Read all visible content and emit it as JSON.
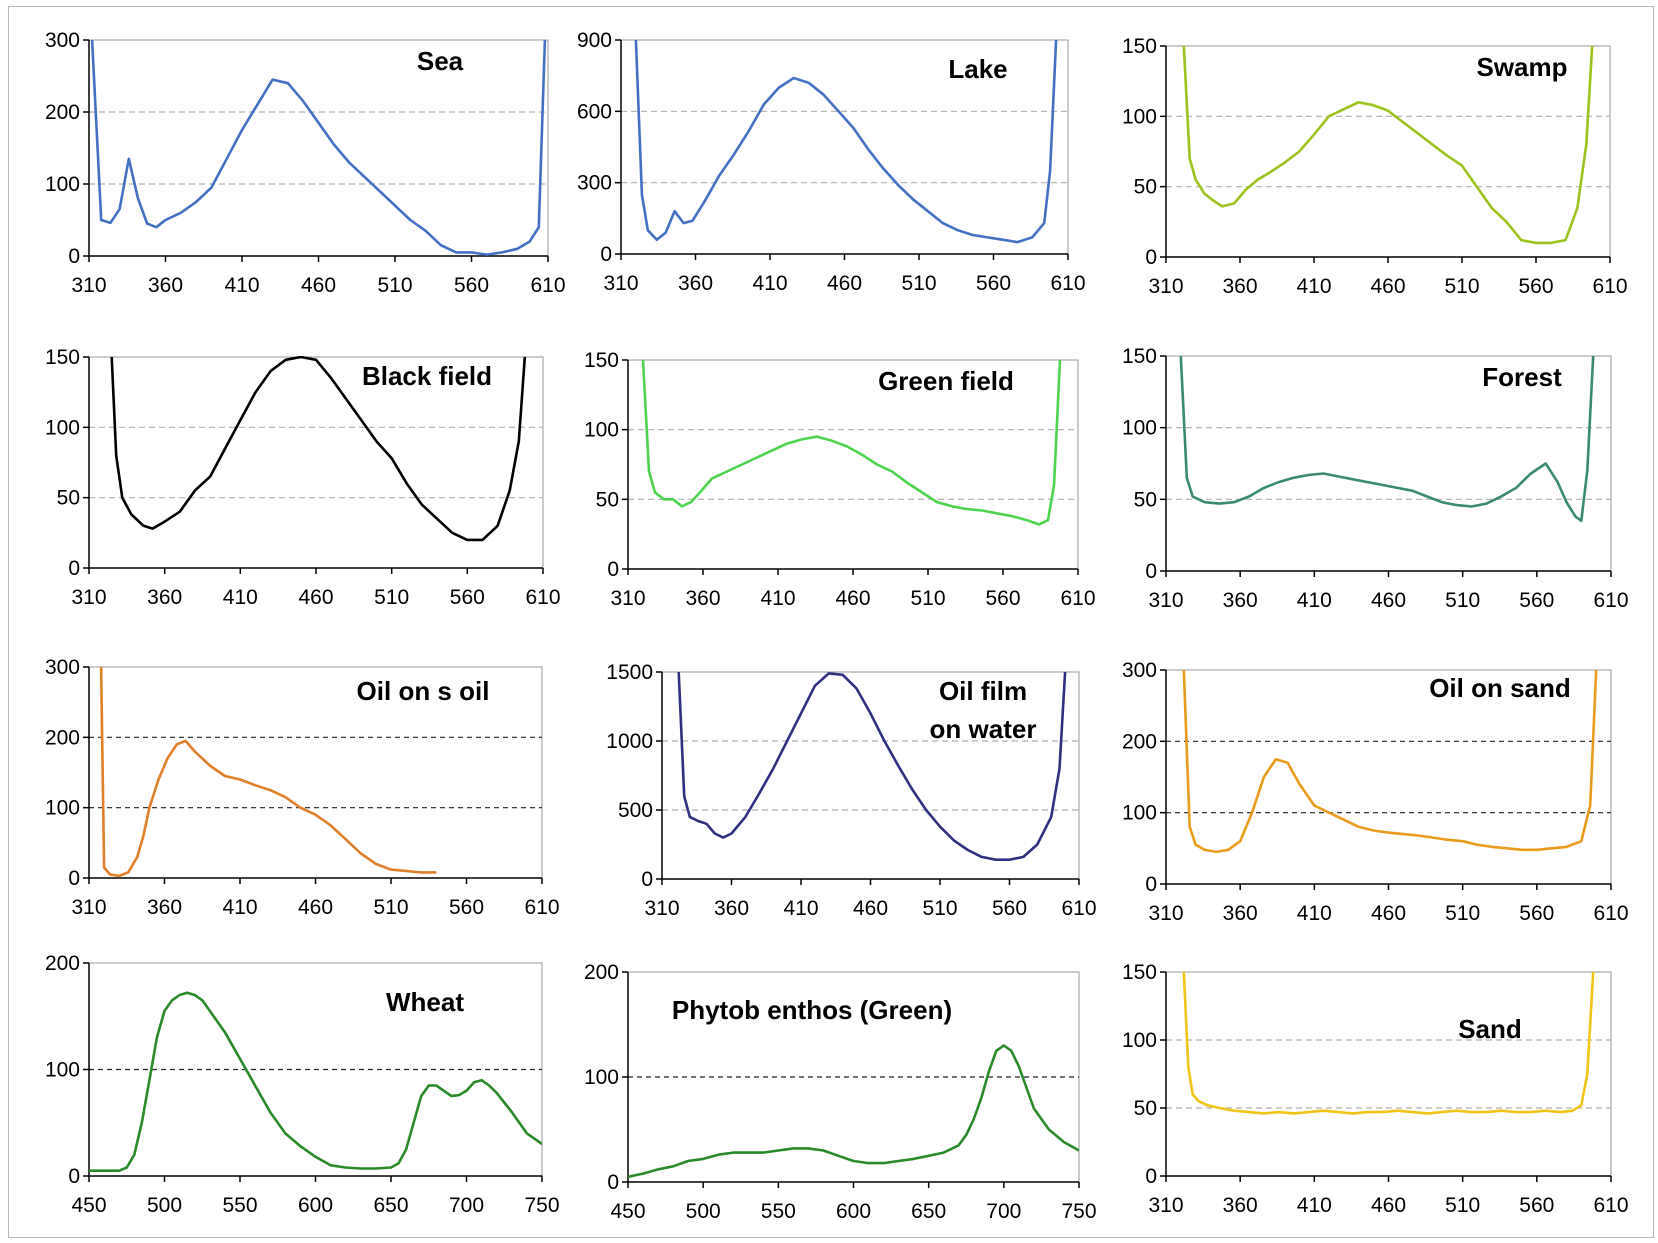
{
  "chart_data": [
    {
      "type": "line",
      "title": "Sea",
      "color": "#4470c4",
      "xlim": [
        310,
        610
      ],
      "ylim": [
        0,
        300
      ],
      "xticks": [
        310,
        360,
        410,
        460,
        510,
        560,
        610
      ],
      "yticks": [
        0,
        100,
        200,
        300
      ],
      "grid": "dashed-gray",
      "series": [
        {
          "x": [
            312,
            318,
            324,
            330,
            336,
            342,
            348,
            354,
            360,
            370,
            380,
            390,
            400,
            410,
            420,
            430,
            440,
            450,
            460,
            470,
            480,
            490,
            500,
            510,
            520,
            530,
            540,
            550,
            560,
            570,
            580,
            590,
            598,
            604,
            608
          ],
          "y": [
            300,
            50,
            46,
            65,
            135,
            80,
            45,
            40,
            50,
            60,
            75,
            95,
            135,
            175,
            210,
            245,
            240,
            215,
            185,
            155,
            130,
            110,
            90,
            70,
            50,
            35,
            15,
            5,
            5,
            2,
            5,
            10,
            20,
            40,
            300
          ]
        }
      ]
    },
    {
      "type": "line",
      "title": "Lake",
      "color": "#4470c4",
      "xlim": [
        310,
        610
      ],
      "ylim": [
        0,
        900
      ],
      "xticks": [
        310,
        360,
        410,
        460,
        510,
        560,
        610
      ],
      "yticks": [
        0,
        300,
        600,
        900
      ],
      "grid": "dashed-gray",
      "series": [
        {
          "x": [
            320,
            324,
            328,
            334,
            340,
            346,
            352,
            358,
            366,
            376,
            386,
            396,
            406,
            416,
            426,
            436,
            446,
            456,
            466,
            476,
            486,
            496,
            506,
            516,
            526,
            536,
            546,
            556,
            566,
            576,
            586,
            594,
            598,
            602
          ],
          "y": [
            900,
            250,
            100,
            60,
            90,
            180,
            130,
            140,
            220,
            330,
            420,
            520,
            630,
            700,
            740,
            720,
            670,
            600,
            530,
            440,
            360,
            290,
            230,
            180,
            130,
            100,
            80,
            70,
            60,
            50,
            70,
            130,
            350,
            900
          ]
        }
      ]
    },
    {
      "type": "line",
      "title": "Swamp",
      "color": "#9cc21e",
      "xlim": [
        310,
        610
      ],
      "ylim": [
        0,
        150
      ],
      "xticks": [
        310,
        360,
        410,
        460,
        510,
        560,
        610
      ],
      "yticks": [
        0,
        50,
        100,
        150
      ],
      "grid": "dashed-gray",
      "series": [
        {
          "x": [
            322,
            326,
            330,
            336,
            342,
            348,
            356,
            364,
            372,
            380,
            390,
            400,
            410,
            420,
            430,
            440,
            450,
            460,
            470,
            480,
            490,
            500,
            510,
            520,
            530,
            540,
            550,
            560,
            570,
            580,
            588,
            594,
            598
          ],
          "y": [
            150,
            70,
            55,
            45,
            40,
            36,
            38,
            48,
            55,
            60,
            67,
            75,
            87,
            100,
            105,
            110,
            108,
            104,
            96,
            88,
            80,
            72,
            65,
            50,
            35,
            25,
            12,
            10,
            10,
            12,
            35,
            80,
            150
          ]
        }
      ]
    },
    {
      "type": "line",
      "title": "Black field",
      "color": "#000000",
      "xlim": [
        310,
        610
      ],
      "ylim": [
        0,
        150
      ],
      "xticks": [
        310,
        360,
        410,
        460,
        510,
        560,
        610
      ],
      "yticks": [
        0,
        50,
        100,
        150
      ],
      "grid": "dashed-gray",
      "series": [
        {
          "x": [
            325,
            328,
            332,
            338,
            346,
            352,
            360,
            370,
            380,
            390,
            400,
            410,
            420,
            430,
            440,
            450,
            460,
            470,
            480,
            490,
            500,
            510,
            520,
            530,
            540,
            550,
            560,
            570,
            580,
            588,
            594,
            598
          ],
          "y": [
            150,
            80,
            50,
            38,
            30,
            28,
            33,
            40,
            55,
            65,
            85,
            105,
            125,
            140,
            148,
            150,
            148,
            135,
            120,
            105,
            90,
            78,
            60,
            45,
            35,
            25,
            20,
            20,
            30,
            55,
            90,
            150
          ]
        }
      ]
    },
    {
      "type": "line",
      "title": "Green field",
      "color": "#4dd34d",
      "xlim": [
        310,
        610
      ],
      "ylim": [
        0,
        150
      ],
      "xticks": [
        310,
        360,
        410,
        460,
        510,
        560,
        610
      ],
      "yticks": [
        0,
        50,
        100,
        150
      ],
      "grid": "dashed-gray",
      "series": [
        {
          "x": [
            320,
            324,
            328,
            334,
            340,
            346,
            352,
            358,
            366,
            376,
            386,
            396,
            406,
            416,
            426,
            436,
            446,
            456,
            466,
            476,
            486,
            496,
            506,
            516,
            526,
            536,
            546,
            556,
            566,
            576,
            584,
            590,
            594,
            598
          ],
          "y": [
            150,
            70,
            55,
            50,
            50,
            45,
            48,
            55,
            65,
            70,
            75,
            80,
            85,
            90,
            93,
            95,
            92,
            88,
            82,
            75,
            70,
            62,
            55,
            48,
            45,
            43,
            42,
            40,
            38,
            35,
            32,
            35,
            60,
            150
          ]
        }
      ]
    },
    {
      "type": "line",
      "title": "Forest",
      "color": "#3a8a73",
      "xlim": [
        310,
        610
      ],
      "ylim": [
        0,
        150
      ],
      "xticks": [
        310,
        360,
        410,
        460,
        510,
        560,
        610
      ],
      "yticks": [
        0,
        50,
        100,
        150
      ],
      "grid": "dashed-gray",
      "series": [
        {
          "x": [
            320,
            324,
            328,
            336,
            346,
            356,
            366,
            376,
            386,
            396,
            406,
            416,
            426,
            436,
            446,
            456,
            466,
            476,
            486,
            496,
            506,
            516,
            526,
            536,
            546,
            556,
            566,
            574,
            580,
            586,
            590,
            594,
            598
          ],
          "y": [
            150,
            65,
            52,
            48,
            47,
            48,
            52,
            58,
            62,
            65,
            67,
            68,
            66,
            64,
            62,
            60,
            58,
            56,
            52,
            48,
            46,
            45,
            47,
            52,
            58,
            68,
            75,
            62,
            48,
            38,
            35,
            70,
            150
          ]
        }
      ]
    },
    {
      "type": "line",
      "title": "Oil on s oil",
      "color": "#e07f2a",
      "xlim": [
        310,
        610
      ],
      "ylim": [
        0,
        300
      ],
      "xticks": [
        310,
        360,
        410,
        460,
        510,
        560,
        610
      ],
      "yticks": [
        0,
        100,
        200,
        300
      ],
      "grid": "dashed-black",
      "series": [
        {
          "x": [
            318,
            320,
            324,
            330,
            336,
            342,
            346,
            350,
            356,
            362,
            368,
            374,
            380,
            390,
            400,
            410,
            420,
            430,
            440,
            450,
            460,
            470,
            480,
            490,
            500,
            510,
            520,
            530,
            540
          ],
          "y": [
            300,
            15,
            5,
            3,
            8,
            30,
            60,
            100,
            140,
            170,
            190,
            195,
            180,
            160,
            145,
            140,
            132,
            125,
            115,
            100,
            90,
            75,
            55,
            35,
            20,
            12,
            10,
            8,
            8
          ]
        }
      ]
    },
    {
      "type": "line",
      "title": "Oil film",
      "subtitle": "on water",
      "color": "#303080",
      "xlim": [
        310,
        610
      ],
      "ylim": [
        0,
        1500
      ],
      "xticks": [
        310,
        360,
        410,
        460,
        510,
        560,
        610
      ],
      "yticks": [
        0,
        500,
        1000,
        1500
      ],
      "grid": "dashed-gray",
      "series": [
        {
          "x": [
            322,
            326,
            330,
            336,
            342,
            348,
            354,
            360,
            370,
            380,
            390,
            400,
            410,
            420,
            430,
            440,
            450,
            460,
            470,
            480,
            490,
            500,
            510,
            520,
            530,
            540,
            550,
            560,
            570,
            580,
            590,
            596,
            600
          ],
          "y": [
            1500,
            600,
            450,
            420,
            400,
            330,
            300,
            330,
            450,
            620,
            800,
            1000,
            1200,
            1400,
            1490,
            1480,
            1380,
            1200,
            1000,
            820,
            650,
            500,
            380,
            280,
            210,
            160,
            140,
            140,
            160,
            250,
            450,
            800,
            1500
          ]
        }
      ]
    },
    {
      "type": "line",
      "title": "Oil on sand",
      "color": "#e89b1c",
      "xlim": [
        310,
        610
      ],
      "ylim": [
        0,
        300
      ],
      "xticks": [
        310,
        360,
        410,
        460,
        510,
        560,
        610
      ],
      "yticks": [
        0,
        100,
        200,
        300
      ],
      "grid": "dashed-black",
      "series": [
        {
          "x": [
            322,
            326,
            330,
            336,
            344,
            352,
            360,
            368,
            376,
            384,
            392,
            400,
            410,
            420,
            430,
            440,
            450,
            460,
            470,
            480,
            490,
            500,
            510,
            520,
            530,
            540,
            550,
            560,
            570,
            580,
            590,
            596,
            600
          ],
          "y": [
            300,
            80,
            55,
            48,
            45,
            48,
            60,
            100,
            150,
            175,
            170,
            140,
            110,
            100,
            90,
            80,
            75,
            72,
            70,
            68,
            65,
            62,
            60,
            55,
            52,
            50,
            48,
            48,
            50,
            52,
            60,
            110,
            300
          ]
        }
      ]
    },
    {
      "type": "line",
      "title": "Wheat",
      "color": "#2a8a2a",
      "xlim": [
        450,
        750
      ],
      "ylim": [
        0,
        200
      ],
      "xticks": [
        450,
        500,
        550,
        600,
        650,
        700,
        750
      ],
      "yticks": [
        0,
        100,
        200
      ],
      "grid": "dashed-black",
      "series": [
        {
          "x": [
            450,
            460,
            470,
            475,
            480,
            485,
            490,
            495,
            500,
            505,
            510,
            515,
            520,
            525,
            530,
            540,
            550,
            560,
            570,
            580,
            590,
            600,
            610,
            620,
            630,
            640,
            650,
            655,
            660,
            665,
            670,
            675,
            680,
            685,
            690,
            695,
            700,
            705,
            710,
            715,
            720,
            730,
            740,
            750
          ],
          "y": [
            5,
            5,
            5,
            8,
            20,
            50,
            90,
            130,
            155,
            165,
            170,
            172,
            170,
            165,
            155,
            135,
            110,
            85,
            60,
            40,
            28,
            18,
            10,
            8,
            7,
            7,
            8,
            12,
            25,
            50,
            75,
            85,
            85,
            80,
            75,
            76,
            80,
            88,
            90,
            85,
            78,
            60,
            40,
            30
          ]
        }
      ]
    },
    {
      "type": "line",
      "title": "Phytob enthos (Green)",
      "color": "#2a8a2a",
      "xlim": [
        450,
        750
      ],
      "ylim": [
        0,
        200
      ],
      "xticks": [
        450,
        500,
        550,
        600,
        650,
        700,
        750
      ],
      "yticks": [
        0,
        100,
        200
      ],
      "grid": "dashed-black",
      "series": [
        {
          "x": [
            450,
            460,
            470,
            480,
            490,
            500,
            510,
            520,
            530,
            540,
            550,
            560,
            570,
            580,
            590,
            600,
            610,
            620,
            630,
            640,
            650,
            660,
            670,
            675,
            680,
            685,
            690,
            695,
            700,
            705,
            710,
            715,
            720,
            730,
            740,
            750
          ],
          "y": [
            5,
            8,
            12,
            15,
            20,
            22,
            26,
            28,
            28,
            28,
            30,
            32,
            32,
            30,
            25,
            20,
            18,
            18,
            20,
            22,
            25,
            28,
            35,
            45,
            60,
            80,
            105,
            125,
            130,
            125,
            110,
            90,
            70,
            50,
            38,
            30
          ]
        }
      ]
    },
    {
      "type": "line",
      "title": "Sand",
      "color": "#f0c419",
      "xlim": [
        310,
        610
      ],
      "ylim": [
        0,
        150
      ],
      "xticks": [
        310,
        360,
        410,
        460,
        510,
        560,
        610
      ],
      "yticks": [
        0,
        50,
        100,
        150
      ],
      "grid": "dashed-gray",
      "series": [
        {
          "x": [
            322,
            325,
            328,
            332,
            338,
            346,
            356,
            366,
            376,
            386,
            396,
            406,
            416,
            426,
            436,
            446,
            456,
            466,
            476,
            486,
            496,
            506,
            516,
            526,
            536,
            546,
            556,
            566,
            576,
            584,
            590,
            594,
            598
          ],
          "y": [
            150,
            80,
            60,
            55,
            52,
            50,
            48,
            47,
            46,
            47,
            46,
            47,
            48,
            47,
            46,
            47,
            47,
            48,
            47,
            46,
            47,
            48,
            47,
            47,
            48,
            47,
            47,
            48,
            47,
            48,
            52,
            75,
            150
          ]
        }
      ]
    }
  ]
}
